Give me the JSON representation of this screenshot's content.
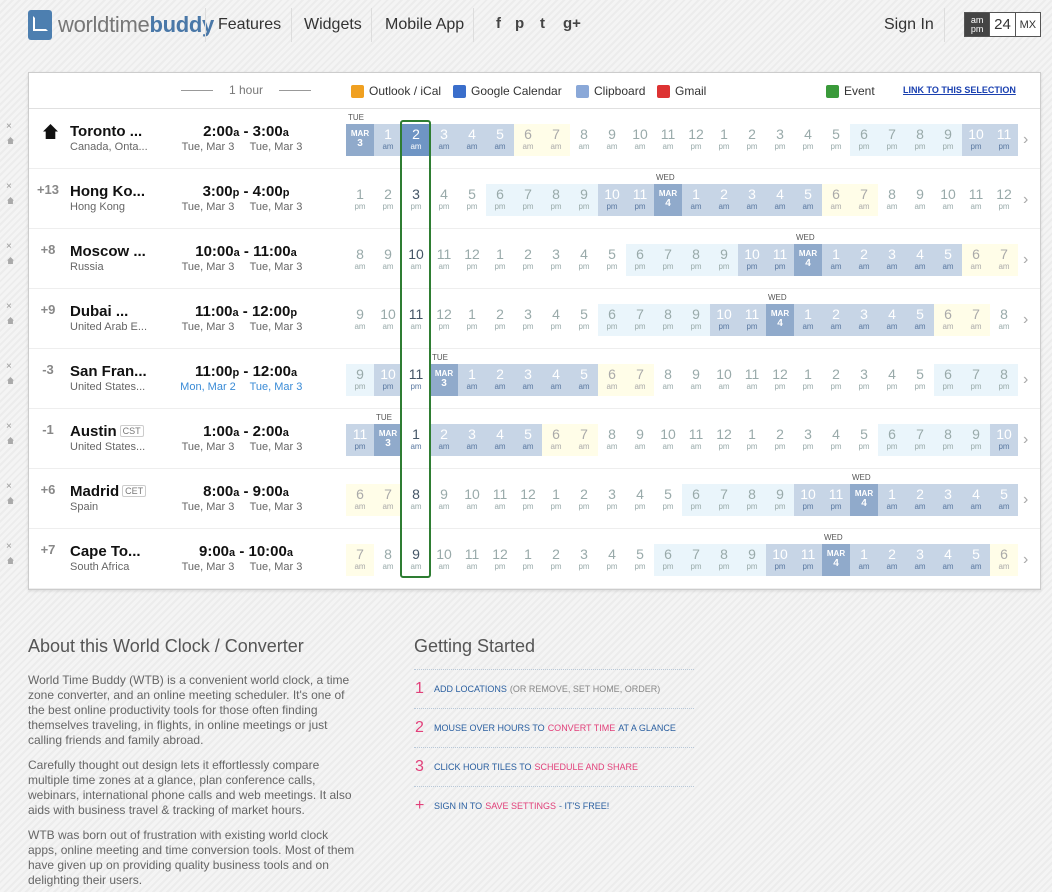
{
  "header": {
    "logo_light": "worldtime",
    "logo_bold": "buddy",
    "nav": [
      "Features",
      "Widgets",
      "Mobile App"
    ],
    "social": [
      {
        "icon": "facebook-icon",
        "glyph": "f"
      },
      {
        "icon": "pinterest-icon",
        "glyph": "p"
      },
      {
        "icon": "twitter-icon",
        "glyph": "t"
      },
      {
        "icon": "google-plus-icon",
        "glyph": "g+"
      }
    ],
    "sign_in": "Sign In",
    "format": {
      "ampm_top": "am",
      "ampm_bottom": "pm",
      "h24": "24",
      "mx": "MX"
    }
  },
  "toolbar": {
    "hour_label": "1 hour",
    "outlook": "Outlook / iCal",
    "gcal": "Google Calendar",
    "clipboard": "Clipboard",
    "gmail": "Gmail",
    "event": "Event",
    "link": "LINK TO THIS SELECTION"
  },
  "rows": [
    {
      "home": true,
      "offset": "",
      "city": "Toronto ...",
      "tz": "",
      "country": "Canada, Onta...",
      "t1": "2:00",
      "t1s": "a",
      "t2": "3:00",
      "t2s": "a",
      "d1": "Tue, Mar 3",
      "d2": "Tue, Mar 3",
      "d1_blue": false,
      "d2_blue": false,
      "hours": [
        3,
        1,
        2,
        3,
        4,
        5,
        6,
        7,
        8,
        9,
        10,
        11,
        12,
        1,
        2,
        3,
        4,
        5,
        6,
        7,
        8,
        9,
        10,
        11
      ],
      "day_idx": 0,
      "day_week": "TUE",
      "day_mon": "MAR",
      "day_num": "3",
      "start_ampm": "am"
    },
    {
      "home": false,
      "offset": "+13",
      "city": "Hong Ko...",
      "tz": "",
      "country": "Hong Kong",
      "t1": "3:00",
      "t1s": "p",
      "t2": "4:00",
      "t2s": "p",
      "d1": "Tue, Mar 3",
      "d2": "Tue, Mar 3",
      "d1_blue": false,
      "d2_blue": false,
      "hours": [
        1,
        2,
        3,
        4,
        5,
        6,
        7,
        8,
        9,
        10,
        11,
        4,
        1,
        2,
        3,
        4,
        5,
        6,
        7,
        8,
        9,
        10,
        11,
        12
      ],
      "day_idx": 11,
      "day_week": "WED",
      "day_mon": "MAR",
      "day_num": "4",
      "start_ampm": "pm"
    },
    {
      "home": false,
      "offset": "+8",
      "city": "Moscow ...",
      "tz": "",
      "country": "Russia",
      "t1": "10:00",
      "t1s": "a",
      "t2": "11:00",
      "t2s": "a",
      "d1": "Tue, Mar 3",
      "d2": "Tue, Mar 3",
      "d1_blue": false,
      "d2_blue": false,
      "hours": [
        8,
        9,
        10,
        11,
        12,
        1,
        2,
        3,
        4,
        5,
        6,
        7,
        8,
        9,
        10,
        11,
        4,
        1,
        2,
        3,
        4,
        5,
        6,
        7
      ],
      "day_idx": 16,
      "day_week": "WED",
      "day_mon": "MAR",
      "day_num": "4",
      "start_ampm": "am"
    },
    {
      "home": false,
      "offset": "+9",
      "city": "Dubai ...",
      "tz": "",
      "country": "United Arab E...",
      "t1": "11:00",
      "t1s": "a",
      "t2": "12:00",
      "t2s": "p",
      "d1": "Tue, Mar 3",
      "d2": "Tue, Mar 3",
      "d1_blue": false,
      "d2_blue": false,
      "hours": [
        9,
        10,
        11,
        12,
        1,
        2,
        3,
        4,
        5,
        6,
        7,
        8,
        9,
        10,
        11,
        4,
        1,
        2,
        3,
        4,
        5,
        6,
        7,
        8
      ],
      "day_idx": 15,
      "day_week": "WED",
      "day_mon": "MAR",
      "day_num": "4",
      "start_ampm": "am"
    },
    {
      "home": false,
      "offset": "-3",
      "city": "San Fran...",
      "tz": "",
      "country": "United States...",
      "t1": "11:00",
      "t1s": "p",
      "t2": "12:00",
      "t2s": "a",
      "d1": "Mon, Mar 2",
      "d2": "Tue, Mar 3",
      "d1_blue": true,
      "d2_blue": true,
      "hours": [
        9,
        10,
        11,
        3,
        1,
        2,
        3,
        4,
        5,
        6,
        7,
        8,
        9,
        10,
        11,
        12,
        1,
        2,
        3,
        4,
        5,
        6,
        7,
        8
      ],
      "day_idx": 3,
      "day_week": "TUE",
      "day_mon": "MAR",
      "day_num": "3",
      "start_ampm": "pm"
    },
    {
      "home": false,
      "offset": "-1",
      "city": "Austin",
      "tz": "CST",
      "country": "United States...",
      "t1": "1:00",
      "t1s": "a",
      "t2": "2:00",
      "t2s": "a",
      "d1": "Tue, Mar 3",
      "d2": "Tue, Mar 3",
      "d1_blue": false,
      "d2_blue": false,
      "hours": [
        11,
        3,
        1,
        2,
        3,
        4,
        5,
        6,
        7,
        8,
        9,
        10,
        11,
        12,
        1,
        2,
        3,
        4,
        5,
        6,
        7,
        8,
        9,
        10
      ],
      "day_idx": 1,
      "day_week": "TUE",
      "day_mon": "MAR",
      "day_num": "3",
      "start_ampm": "pm"
    },
    {
      "home": false,
      "offset": "+6",
      "city": "Madrid",
      "tz": "CET",
      "country": "Spain",
      "t1": "8:00",
      "t1s": "a",
      "t2": "9:00",
      "t2s": "a",
      "d1": "Tue, Mar 3",
      "d2": "Tue, Mar 3",
      "d1_blue": false,
      "d2_blue": false,
      "hours": [
        6,
        7,
        8,
        9,
        10,
        11,
        12,
        1,
        2,
        3,
        4,
        5,
        6,
        7,
        8,
        9,
        10,
        11,
        4,
        1,
        2,
        3,
        4,
        5
      ],
      "day_idx": 18,
      "day_week": "WED",
      "day_mon": "MAR",
      "day_num": "4",
      "start_ampm": "am"
    },
    {
      "home": false,
      "offset": "+7",
      "city": "Cape To...",
      "tz": "",
      "country": "South Africa",
      "t1": "9:00",
      "t1s": "a",
      "t2": "10:00",
      "t2s": "a",
      "d1": "Tue, Mar 3",
      "d2": "Tue, Mar 3",
      "d1_blue": false,
      "d2_blue": false,
      "hours": [
        7,
        8,
        9,
        10,
        11,
        12,
        1,
        2,
        3,
        4,
        5,
        6,
        7,
        8,
        9,
        10,
        11,
        4,
        1,
        2,
        3,
        4,
        5,
        6
      ],
      "day_idx": 17,
      "day_week": "WED",
      "day_mon": "MAR",
      "day_num": "4",
      "start_ampm": "am"
    }
  ],
  "about": {
    "title": "About this World Clock / Converter",
    "p1": "World Time Buddy (WTB) is a convenient world clock, a time zone converter, and an online meeting scheduler. It's one of the best online productivity tools for those often finding themselves traveling, in flights, in online meetings or just calling friends and family abroad.",
    "p2": "Carefully thought out design lets it effortlessly compare multiple time zones at a glance, plan conference calls, webinars, international phone calls and web meetings. It also aids with business travel & tracking of market hours.",
    "p3": "WTB was born out of frustration with existing world clock apps, online meeting and time conversion tools. Most of them have given up on providing quality business tools and on delighting their users."
  },
  "getting_started": {
    "title": "Getting Started",
    "items": [
      {
        "num": "1",
        "a": "ADD LOCATIONS",
        "b": "",
        "c": "",
        "gray": "(OR REMOVE, SET HOME, ORDER)"
      },
      {
        "num": "2",
        "a": "MOUSE OVER HOURS TO",
        "b": "CONVERT TIME",
        "c": "AT A GLANCE",
        "gray": ""
      },
      {
        "num": "3",
        "a": "CLICK HOUR TILES TO",
        "b": "SCHEDULE AND SHARE",
        "c": "",
        "gray": ""
      },
      {
        "num": "+",
        "a": "SIGN IN TO",
        "b": "SAVE SETTINGS",
        "c": "- IT'S FREE!",
        "gray": ""
      }
    ]
  },
  "colors": {
    "day": "#bfe3f6",
    "night": "#c7d5e6",
    "nightdeep": "#90aacb",
    "evening": "#eaf5fb",
    "morning": "#fffde8",
    "select": "#2e7d32",
    "accent": "#e2407a"
  }
}
